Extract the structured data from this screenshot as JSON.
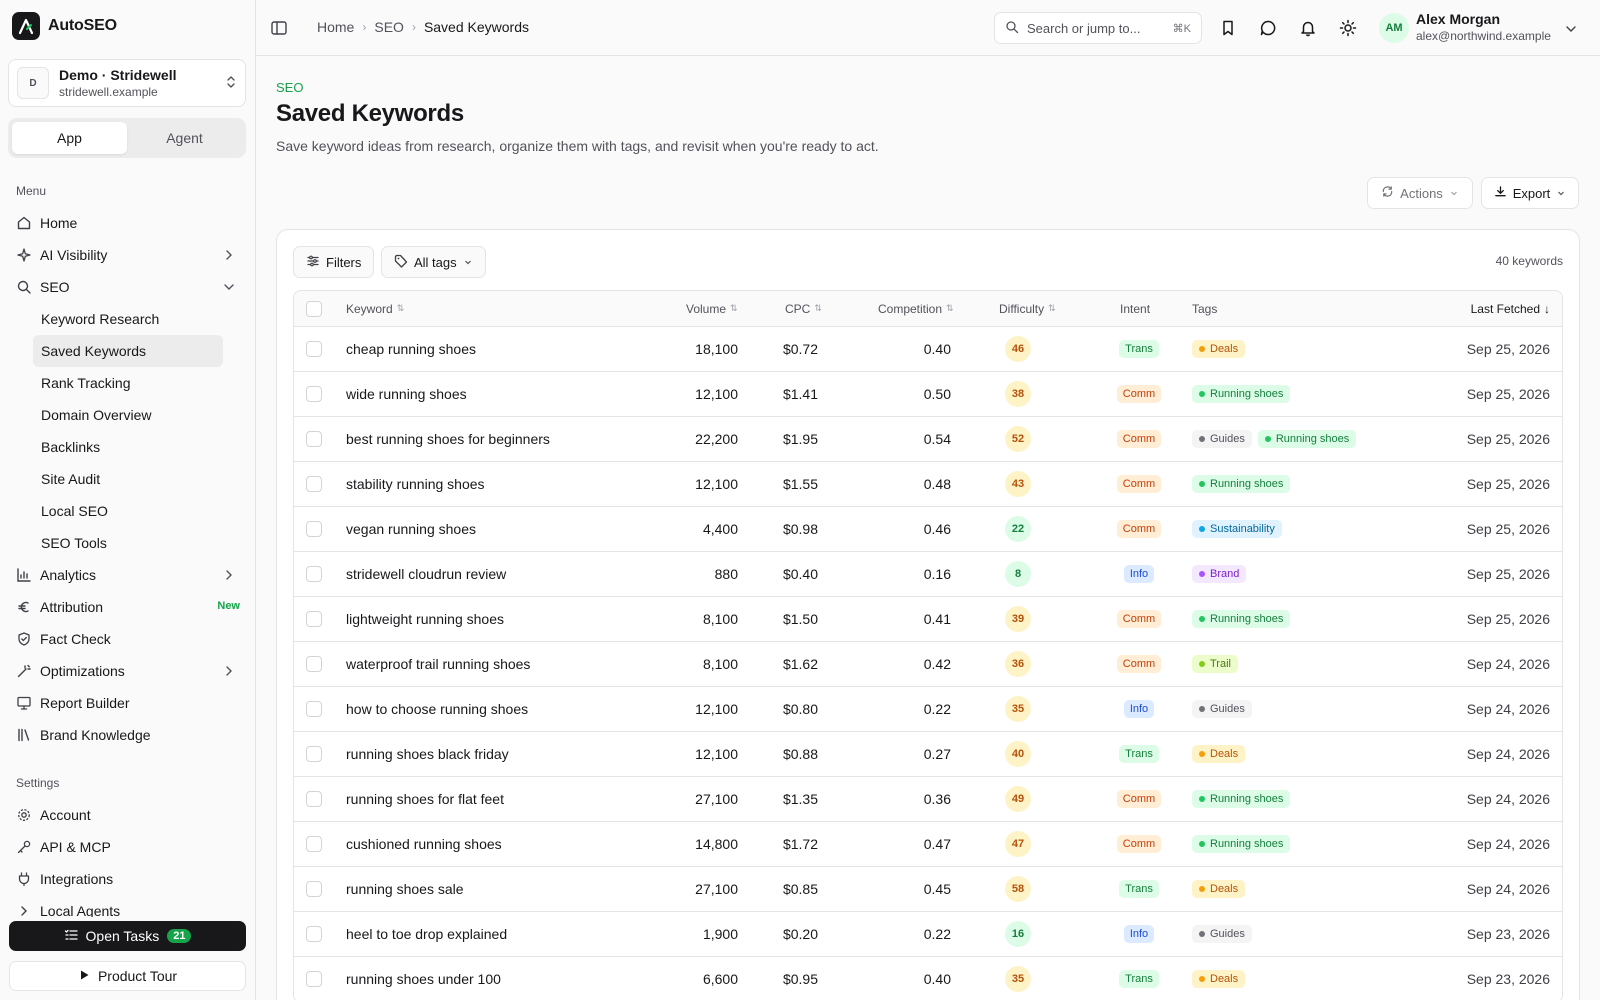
{
  "app": {
    "name": "AutoSEO"
  },
  "org": {
    "avatar": "D",
    "name": "Demo · Stridewell",
    "domain": "stridewell.example"
  },
  "mode_tabs": [
    "App",
    "Agent"
  ],
  "menu": {
    "section_label": "Menu",
    "items": {
      "home": "Home",
      "ai_visibility": "AI Visibility",
      "seo": "SEO",
      "analytics": "Analytics",
      "attribution": "Attribution",
      "attribution_badge": "New",
      "fact_check": "Fact Check",
      "optimizations": "Optimizations",
      "report_builder": "Report Builder",
      "brand_knowledge": "Brand Knowledge"
    },
    "seo_sub": [
      "Keyword Research",
      "Saved Keywords",
      "Rank Tracking",
      "Domain Overview",
      "Backlinks",
      "Site Audit",
      "Local SEO",
      "SEO Tools"
    ]
  },
  "settings": {
    "section_label": "Settings",
    "items": {
      "account": "Account",
      "api": "API & MCP",
      "integrations": "Integrations",
      "local_agents": "Local Agents"
    }
  },
  "open_tasks": {
    "label": "Open Tasks",
    "count": "21"
  },
  "product_tour": "Product Tour",
  "breadcrumbs": [
    "Home",
    "SEO",
    "Saved Keywords"
  ],
  "search": {
    "placeholder": "Search or jump to...",
    "shortcut": "⌘K"
  },
  "user": {
    "initials": "AM",
    "name": "Alex Morgan",
    "email": "alex@northwind.example"
  },
  "page": {
    "eyebrow": "SEO",
    "title": "Saved Keywords",
    "subtitle": "Save keyword ideas from research, organize them with tags, and revisit when you're ready to act.",
    "actions_label": "Actions",
    "export_label": "Export"
  },
  "toolbar": {
    "filters_label": "Filters",
    "tags_label": "All tags",
    "count_label": "40 keywords"
  },
  "columns": {
    "keyword": "Keyword",
    "volume": "Volume",
    "cpc": "CPC",
    "competition": "Competition",
    "difficulty": "Difficulty",
    "intent": "Intent",
    "tags": "Tags",
    "last_fetched": "Last Fetched"
  },
  "tag_colors": {
    "Deals": {
      "bg": "#fef3c7",
      "fg": "#b45309",
      "dot": "#f59e0b"
    },
    "Running shoes": {
      "bg": "#dcfce7",
      "fg": "#15803d",
      "dot": "#22c55e"
    },
    "Guides": {
      "bg": "#f4f4f5",
      "fg": "#52525b",
      "dot": "#71717a"
    },
    "Sustainability": {
      "bg": "#e0f2fe",
      "fg": "#0369a1",
      "dot": "#0ea5e9"
    },
    "Brand": {
      "bg": "#f3e8ff",
      "fg": "#7e22ce",
      "dot": "#a855f7"
    },
    "Trail": {
      "bg": "#ecfccb",
      "fg": "#4d7c0f",
      "dot": "#84cc16"
    }
  },
  "rows": [
    {
      "keyword": "cheap running shoes",
      "volume": "18,100",
      "cpc": "$0.72",
      "competition": "0.40",
      "difficulty": "46",
      "intent": "Trans",
      "tags": [
        "Deals"
      ],
      "date": "Sep 25, 2026"
    },
    {
      "keyword": "wide running shoes",
      "volume": "12,100",
      "cpc": "$1.41",
      "competition": "0.50",
      "difficulty": "38",
      "intent": "Comm",
      "tags": [
        "Running shoes"
      ],
      "date": "Sep 25, 2026"
    },
    {
      "keyword": "best running shoes for beginners",
      "volume": "22,200",
      "cpc": "$1.95",
      "competition": "0.54",
      "difficulty": "52",
      "intent": "Comm",
      "tags": [
        "Guides",
        "Running shoes"
      ],
      "date": "Sep 25, 2026"
    },
    {
      "keyword": "stability running shoes",
      "volume": "12,100",
      "cpc": "$1.55",
      "competition": "0.48",
      "difficulty": "43",
      "intent": "Comm",
      "tags": [
        "Running shoes"
      ],
      "date": "Sep 25, 2026"
    },
    {
      "keyword": "vegan running shoes",
      "volume": "4,400",
      "cpc": "$0.98",
      "competition": "0.46",
      "difficulty": "22",
      "intent": "Comm",
      "tags": [
        "Sustainability"
      ],
      "date": "Sep 25, 2026"
    },
    {
      "keyword": "stridewell cloudrun review",
      "volume": "880",
      "cpc": "$0.40",
      "competition": "0.16",
      "difficulty": "8",
      "intent": "Info",
      "tags": [
        "Brand"
      ],
      "date": "Sep 25, 2026"
    },
    {
      "keyword": "lightweight running shoes",
      "volume": "8,100",
      "cpc": "$1.50",
      "competition": "0.41",
      "difficulty": "39",
      "intent": "Comm",
      "tags": [
        "Running shoes"
      ],
      "date": "Sep 25, 2026"
    },
    {
      "keyword": "waterproof trail running shoes",
      "volume": "8,100",
      "cpc": "$1.62",
      "competition": "0.42",
      "difficulty": "36",
      "intent": "Comm",
      "tags": [
        "Trail"
      ],
      "date": "Sep 24, 2026"
    },
    {
      "keyword": "how to choose running shoes",
      "volume": "12,100",
      "cpc": "$0.80",
      "competition": "0.22",
      "difficulty": "35",
      "intent": "Info",
      "tags": [
        "Guides"
      ],
      "date": "Sep 24, 2026"
    },
    {
      "keyword": "running shoes black friday",
      "volume": "12,100",
      "cpc": "$0.88",
      "competition": "0.27",
      "difficulty": "40",
      "intent": "Trans",
      "tags": [
        "Deals"
      ],
      "date": "Sep 24, 2026"
    },
    {
      "keyword": "running shoes for flat feet",
      "volume": "27,100",
      "cpc": "$1.35",
      "competition": "0.36",
      "difficulty": "49",
      "intent": "Comm",
      "tags": [
        "Running shoes"
      ],
      "date": "Sep 24, 2026"
    },
    {
      "keyword": "cushioned running shoes",
      "volume": "14,800",
      "cpc": "$1.72",
      "competition": "0.47",
      "difficulty": "47",
      "intent": "Comm",
      "tags": [
        "Running shoes"
      ],
      "date": "Sep 24, 2026"
    },
    {
      "keyword": "running shoes sale",
      "volume": "27,100",
      "cpc": "$0.85",
      "competition": "0.45",
      "difficulty": "58",
      "intent": "Trans",
      "tags": [
        "Deals"
      ],
      "date": "Sep 24, 2026"
    },
    {
      "keyword": "heel to toe drop explained",
      "volume": "1,900",
      "cpc": "$0.20",
      "competition": "0.22",
      "difficulty": "16",
      "intent": "Info",
      "tags": [
        "Guides"
      ],
      "date": "Sep 23, 2026"
    },
    {
      "keyword": "running shoes under 100",
      "volume": "6,600",
      "cpc": "$0.95",
      "competition": "0.40",
      "difficulty": "35",
      "intent": "Trans",
      "tags": [
        "Deals"
      ],
      "date": "Sep 23, 2026"
    }
  ]
}
